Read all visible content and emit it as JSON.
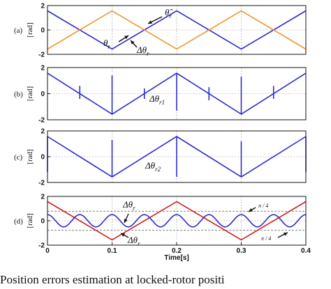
{
  "chart_data": [
    {
      "type": "line",
      "panel_label": "(a)",
      "ylabel": "[rad]",
      "ylim": [
        -2,
        2
      ],
      "yticks": [
        "2",
        "0",
        "-2"
      ],
      "xlim": [
        0,
        0.4
      ],
      "series": [
        {
          "color": "#2b2bd0",
          "kind": "triangle",
          "x": [
            0,
            0.1,
            0.2,
            0.3,
            0.4
          ],
          "y": [
            1.57,
            -1.57,
            1.57,
            -1.57,
            1.57
          ]
        },
        {
          "color": "#f0962a",
          "kind": "triangle",
          "x": [
            0,
            0.1,
            0.2,
            0.3,
            0.4
          ],
          "y": [
            -1.57,
            1.57,
            -1.57,
            1.57,
            -1.57
          ]
        }
      ],
      "annotations": [
        {
          "text": "θ̂",
          "sub": "r"
        },
        {
          "text": "θ",
          "sub": "r"
        },
        {
          "text": "Δθ",
          "sub": "r"
        }
      ]
    },
    {
      "type": "line",
      "panel_label": "(b)",
      "ylabel": "[rad]",
      "ylim": [
        -2,
        2
      ],
      "yticks": [
        "2",
        "0",
        "-2"
      ],
      "xlim": [
        0,
        0.4
      ],
      "series": [
        {
          "color": "#2b2bd0",
          "kind": "triangle",
          "x": [
            0,
            0.1,
            0.2,
            0.3,
            0.4
          ],
          "y": [
            1.57,
            -1.57,
            1.57,
            -1.57,
            1.57
          ],
          "spikes": [
            {
              "x": 0.05,
              "lo": -0.4,
              "hi": 0.6
            },
            {
              "x": 0.1,
              "lo": -1.57,
              "hi": 1.4
            },
            {
              "x": 0.15,
              "lo": -0.4,
              "hi": 0.4
            },
            {
              "x": 0.2,
              "lo": -1.3,
              "hi": 1.57
            },
            {
              "x": 0.25,
              "lo": -0.5,
              "hi": 0.5
            },
            {
              "x": 0.3,
              "lo": -1.57,
              "hi": 1.3
            },
            {
              "x": 0.35,
              "lo": -0.4,
              "hi": 0.6
            }
          ]
        }
      ],
      "annotations": [
        {
          "text": "Δθ",
          "sub": "r1"
        }
      ]
    },
    {
      "type": "line",
      "panel_label": "(c)",
      "ylabel": "[rad]",
      "ylim": [
        -2,
        2
      ],
      "yticks": [
        "2",
        "0",
        "-2"
      ],
      "xlim": [
        0,
        0.4
      ],
      "series": [
        {
          "color": "#2b2bd0",
          "kind": "triangle",
          "x": [
            0,
            0.1,
            0.2,
            0.3,
            0.4
          ],
          "y": [
            1.57,
            -1.57,
            1.57,
            -1.57,
            1.57
          ],
          "spikes": [
            {
              "x": 0.0,
              "lo": -1.2,
              "hi": 1.57
            },
            {
              "x": 0.1,
              "lo": -1.57,
              "hi": 1.3
            },
            {
              "x": 0.2,
              "lo": -1.57,
              "hi": 1.57
            },
            {
              "x": 0.3,
              "lo": -1.57,
              "hi": 1.2
            },
            {
              "x": 0.4,
              "lo": -1.2,
              "hi": 1.57
            }
          ]
        }
      ],
      "annotations": [
        {
          "text": "Δθ",
          "sub": "r2"
        }
      ]
    },
    {
      "type": "line",
      "panel_label": "(d)",
      "ylabel": "[rad]",
      "ylim": [
        -2,
        2
      ],
      "yticks": [
        "2",
        "0",
        "-2"
      ],
      "xlim": [
        0,
        0.4
      ],
      "xticks": [
        "0",
        "0.1",
        "0.2",
        "0.3",
        "0.4"
      ],
      "xlabel": "Time[s]",
      "hlines": [
        0.785,
        -0.785
      ],
      "series": [
        {
          "color": "#d02020",
          "kind": "triangle",
          "x": [
            0,
            0.1,
            0.2,
            0.3,
            0.4
          ],
          "y": [
            1.57,
            -1.57,
            1.57,
            -1.57,
            1.57
          ]
        },
        {
          "color": "#2b2bd0",
          "kind": "wave",
          "amplitude": 0.5,
          "period": 0.05,
          "offset": 0.0
        }
      ],
      "annotations": [
        {
          "text": "Δθ",
          "sub": "r"
        },
        {
          "text": "Δθ",
          "sub": "r"
        },
        {
          "text": "π / 4"
        },
        {
          "text": "π / 4"
        }
      ]
    }
  ],
  "caption": "Position errors estimation at locked-rotor positi"
}
